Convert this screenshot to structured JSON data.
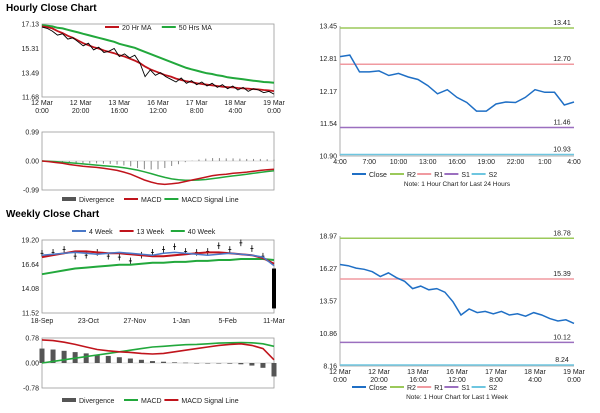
{
  "sections": {
    "hourly_title": "Hourly Close Chart",
    "weekly_title": "Weekly Close Chart"
  },
  "colors": {
    "close": "#1f6fc5",
    "ma20": "#c0141c",
    "ma50": "#22a83c",
    "r2": "#9bc95a",
    "r1": "#f09aa0",
    "s1": "#9b6fbf",
    "s2": "#6ec6e0",
    "macd": "#c0141c",
    "signal": "#22a83c",
    "div": "#888888",
    "w4": "#4a78c8",
    "w13": "#c0141c",
    "w40": "#22a83c",
    "price": "#000000"
  },
  "chart_data": [
    {
      "id": "hourly_price",
      "type": "line",
      "legend": [
        "20 Hr MA",
        "50 Hrs MA"
      ],
      "x_labels": [
        "12 Mar\n0:00",
        "12 Mar\n20:00",
        "13 Mar\n16:00",
        "16 Mar\n12:00",
        "17 Mar\n8:00",
        "18 Mar\n4:00",
        "19 Mar\n0:00"
      ],
      "y_ticks": [
        "17.13",
        "15.31",
        "13.49",
        "11.68"
      ],
      "ylim": [
        11.68,
        17.13
      ],
      "series": [
        {
          "name": "Close",
          "values": [
            16.9,
            16.8,
            16.6,
            16.3,
            16.4,
            16.0,
            16.1,
            15.8,
            15.5,
            15.7,
            15.2,
            15.4,
            15.0,
            15.1,
            15.3,
            14.7,
            14.9,
            14.6,
            14.8,
            14.2,
            13.2,
            13.7,
            13.3,
            13.5,
            13.2,
            13.0,
            12.8,
            13.1,
            12.7,
            12.9,
            12.6,
            12.8,
            12.5,
            12.7,
            12.4,
            12.6,
            12.3,
            12.5,
            12.2,
            12.4,
            12.1,
            12.3,
            12.2,
            12.0,
            12.1,
            11.9
          ]
        },
        {
          "name": "20 Hr MA",
          "values": [
            16.95,
            16.9,
            16.8,
            16.6,
            16.45,
            16.25,
            16.1,
            15.9,
            15.7,
            15.55,
            15.4,
            15.3,
            15.15,
            15.05,
            14.95,
            14.8,
            14.7,
            14.55,
            14.4,
            14.2,
            13.95,
            13.75,
            13.6,
            13.45,
            13.3,
            13.2,
            13.05,
            12.95,
            12.85,
            12.8,
            12.7,
            12.65,
            12.6,
            12.55,
            12.5,
            12.45,
            12.42,
            12.4,
            12.35,
            12.32,
            12.3,
            12.27,
            12.25,
            12.2,
            12.17,
            12.12
          ]
        },
        {
          "name": "50 Hrs MA",
          "values": [
            17.05,
            17.0,
            16.95,
            16.85,
            16.8,
            16.7,
            16.6,
            16.5,
            16.4,
            16.3,
            16.2,
            16.1,
            16.0,
            15.9,
            15.8,
            15.65,
            15.55,
            15.45,
            15.35,
            15.2,
            15.05,
            14.9,
            14.75,
            14.6,
            14.45,
            14.3,
            14.15,
            14.0,
            13.85,
            13.75,
            13.65,
            13.55,
            13.45,
            13.4,
            13.3,
            13.25,
            13.15,
            13.1,
            13.05,
            13.0,
            12.95,
            12.9,
            12.85,
            12.8,
            12.78,
            12.75
          ]
        }
      ]
    },
    {
      "id": "hourly_macd",
      "type": "line",
      "legend": [
        "Divergence",
        "MACD",
        "MACD Signal Line"
      ],
      "y_ticks": [
        "0.99",
        "0.00",
        "-0.99"
      ],
      "ylim": [
        -0.99,
        0.99
      ],
      "series": [
        {
          "name": "MACD",
          "values": [
            0.0,
            -0.02,
            -0.05,
            -0.08,
            -0.12,
            -0.15,
            -0.18,
            -0.2,
            -0.22,
            -0.25,
            -0.28,
            -0.32,
            -0.38,
            -0.45,
            -0.55,
            -0.65,
            -0.72,
            -0.78,
            -0.8,
            -0.78,
            -0.75,
            -0.7,
            -0.65,
            -0.6,
            -0.55,
            -0.5,
            -0.47,
            -0.45,
            -0.42,
            -0.4,
            -0.38,
            -0.35,
            -0.32,
            -0.3,
            -0.28
          ]
        },
        {
          "name": "MACD Signal Line",
          "values": [
            0.0,
            -0.01,
            -0.02,
            -0.04,
            -0.06,
            -0.08,
            -0.1,
            -0.12,
            -0.14,
            -0.16,
            -0.18,
            -0.2,
            -0.23,
            -0.27,
            -0.31,
            -0.37,
            -0.43,
            -0.5,
            -0.56,
            -0.61,
            -0.64,
            -0.66,
            -0.66,
            -0.65,
            -0.63,
            -0.6,
            -0.57,
            -0.54,
            -0.51,
            -0.48,
            -0.45,
            -0.42,
            -0.39,
            -0.36,
            -0.33
          ]
        },
        {
          "name": "Divergence",
          "values": [
            0.0,
            -0.01,
            -0.03,
            -0.04,
            -0.06,
            -0.07,
            -0.08,
            -0.08,
            -0.08,
            -0.09,
            -0.1,
            -0.12,
            -0.15,
            -0.18,
            -0.24,
            -0.28,
            -0.29,
            -0.28,
            -0.24,
            -0.17,
            -0.11,
            -0.04,
            0.01,
            0.05,
            0.08,
            0.1,
            0.1,
            0.09,
            0.09,
            0.08,
            0.07,
            0.07,
            0.07,
            0.06,
            0.05
          ]
        }
      ]
    },
    {
      "id": "hourly_levels",
      "type": "line",
      "legend": [
        "Close",
        "R2",
        "R1",
        "S1",
        "S2"
      ],
      "note": "Note: 1 Hour Chart for Last 24 Hours",
      "x_labels": [
        "4:00",
        "7:00",
        "10:00",
        "13:00",
        "16:00",
        "19:00",
        "22:00",
        "1:00",
        "4:00"
      ],
      "y_ticks": [
        "13.45",
        "12.81",
        "12.17",
        "11.54",
        "10.90"
      ],
      "ylim": [
        10.9,
        13.45
      ],
      "levels": [
        {
          "name": "R2",
          "value": 13.41,
          "label": "13.41"
        },
        {
          "name": "R1",
          "value": 12.7,
          "label": "12.70"
        },
        {
          "name": "S1",
          "value": 11.46,
          "label": "11.46"
        },
        {
          "name": "S2",
          "value": 10.93,
          "label": "10.93"
        }
      ],
      "series": [
        {
          "name": "Close",
          "values": [
            12.85,
            12.88,
            12.55,
            12.55,
            12.57,
            12.48,
            12.52,
            12.45,
            12.4,
            12.28,
            12.12,
            12.2,
            12.05,
            11.95,
            11.78,
            11.78,
            11.92,
            11.96,
            11.95,
            12.05,
            12.2,
            12.15,
            12.15,
            11.9,
            11.96
          ]
        }
      ]
    },
    {
      "id": "weekly_price",
      "type": "line",
      "legend": [
        "4 Week",
        "13 Week",
        "40 Week"
      ],
      "x_labels": [
        "18-Sep",
        "23-Oct",
        "27-Nov",
        "1-Jan",
        "5-Feb",
        "11-Mar"
      ],
      "y_ticks": [
        "19.20",
        "16.64",
        "14.08",
        "11.52"
      ],
      "ylim": [
        11.52,
        19.2
      ],
      "series": [
        {
          "name": "4 Week",
          "values": [
            17.6,
            17.7,
            17.8,
            17.9,
            17.8,
            17.7,
            17.8,
            17.9,
            17.8,
            17.7,
            17.6,
            17.8,
            17.9,
            17.8,
            17.7,
            17.6,
            17.7,
            17.8,
            17.7,
            17.6,
            17.4,
            16.5
          ]
        },
        {
          "name": "13 Week",
          "values": [
            17.4,
            17.6,
            17.8,
            18.0,
            18.0,
            17.9,
            17.8,
            17.8,
            17.7,
            17.6,
            17.5,
            17.5,
            17.6,
            17.7,
            17.8,
            17.9,
            17.9,
            17.8,
            17.7,
            17.6,
            17.3,
            16.7
          ]
        },
        {
          "name": "40 Week",
          "values": [
            15.6,
            15.8,
            16.0,
            16.2,
            16.3,
            16.4,
            16.5,
            16.6,
            16.6,
            16.7,
            16.8,
            16.8,
            16.9,
            16.9,
            17.0,
            17.0,
            17.1,
            17.1,
            17.2,
            17.2,
            17.2,
            17.1
          ]
        },
        {
          "name": "Price",
          "values": [
            17.8,
            17.9,
            18.2,
            17.5,
            17.6,
            17.9,
            17.5,
            17.4,
            17.0,
            17.6,
            17.9,
            18.2,
            18.5,
            18.0,
            17.9,
            18.0,
            18.6,
            18.2,
            18.9,
            18.3,
            17.5,
            12.0
          ]
        }
      ]
    },
    {
      "id": "weekly_macd",
      "type": "line",
      "legend": [
        "Divergence",
        "MACD",
        "MACD Signal Line"
      ],
      "y_ticks": [
        "0.78",
        "0.00",
        "-0.78"
      ],
      "ylim": [
        -0.78,
        0.78
      ],
      "series": [
        {
          "name": "MACD",
          "values": [
            0.72,
            0.7,
            0.65,
            0.58,
            0.5,
            0.42,
            0.38,
            0.35,
            0.33,
            0.3,
            0.28,
            0.3,
            0.35,
            0.4,
            0.45,
            0.5,
            0.55,
            0.58,
            0.6,
            0.55,
            0.45,
            0.1
          ]
        },
        {
          "name": "MACD Signal Line",
          "values": [
            0.0,
            0.05,
            0.1,
            0.15,
            0.2,
            0.25,
            0.3,
            0.35,
            0.4,
            0.45,
            0.5,
            0.52,
            0.55,
            0.57,
            0.58,
            0.6,
            0.62,
            0.63,
            0.64,
            0.63,
            0.6,
            0.52
          ]
        },
        {
          "name": "Divergence",
          "values": [
            0.45,
            0.42,
            0.38,
            0.34,
            0.3,
            0.26,
            0.22,
            0.18,
            0.14,
            0.1,
            0.06,
            0.04,
            0.02,
            0.01,
            0.0,
            0.0,
            0.0,
            -0.02,
            -0.04,
            -0.08,
            -0.15,
            -0.42
          ]
        }
      ]
    },
    {
      "id": "weekly_levels",
      "type": "line",
      "legend": [
        "Close",
        "R2",
        "R1",
        "S1",
        "S2"
      ],
      "note": "Note: 1 Hour Chart for Last 1 Week",
      "x_labels": [
        "12 Mar\n0:00",
        "12 Mar\n20:00",
        "13 Mar\n16:00",
        "16 Mar\n12:00",
        "17 Mar\n8:00",
        "18 Mar\n4:00",
        "19 Mar\n0:00"
      ],
      "y_ticks": [
        "18.97",
        "16.27",
        "13.57",
        "10.86",
        "8.16"
      ],
      "ylim": [
        8.16,
        18.97
      ],
      "levels": [
        {
          "name": "R2",
          "value": 18.78,
          "label": "18.78"
        },
        {
          "name": "R1",
          "value": 15.39,
          "label": "15.39"
        },
        {
          "name": "S1",
          "value": 10.12,
          "label": "10.12"
        },
        {
          "name": "S2",
          "value": 8.24,
          "label": "8.24"
        }
      ],
      "series": [
        {
          "name": "Close",
          "values": [
            16.6,
            16.5,
            16.3,
            16.2,
            16.0,
            15.6,
            15.9,
            15.5,
            15.2,
            14.6,
            14.8,
            14.5,
            14.6,
            14.3,
            13.5,
            12.4,
            12.9,
            12.6,
            12.7,
            12.5,
            12.7,
            12.4,
            12.5,
            12.3,
            12.6,
            12.4,
            12.1,
            11.9,
            12.0,
            11.7
          ]
        }
      ]
    }
  ]
}
